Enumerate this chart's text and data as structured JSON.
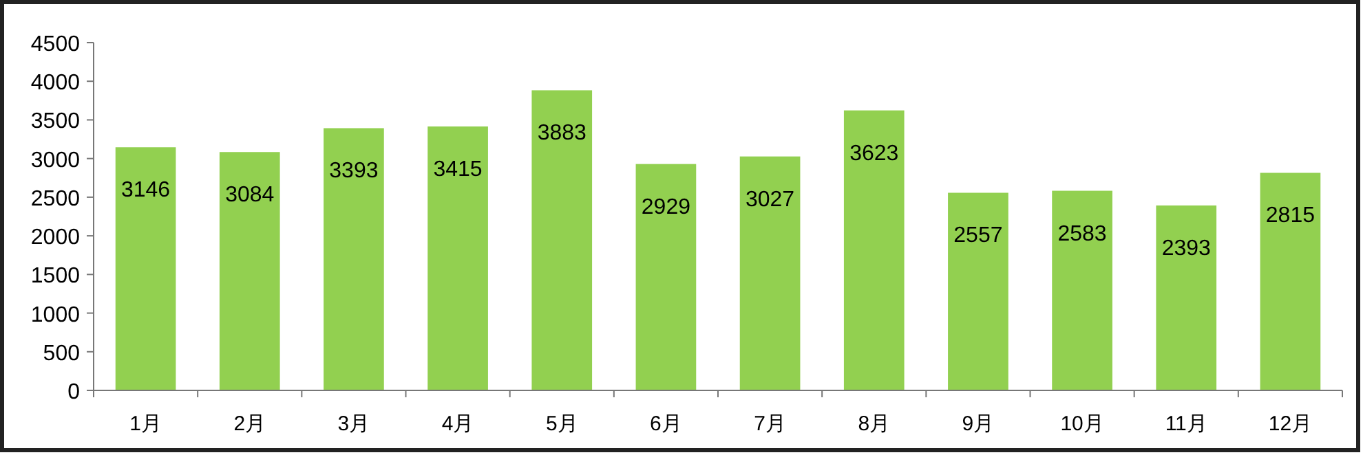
{
  "chart_data": {
    "type": "bar",
    "categories": [
      "1月",
      "2月",
      "3月",
      "4月",
      "5月",
      "6月",
      "7月",
      "8月",
      "9月",
      "10月",
      "11月",
      "12月"
    ],
    "values": [
      3146,
      3084,
      3393,
      3415,
      3883,
      2929,
      3027,
      3623,
      2557,
      2583,
      2393,
      2815
    ],
    "color": "#92d050",
    "ylim": [
      0,
      4500
    ],
    "yticks": [
      0,
      500,
      1000,
      1500,
      2000,
      2500,
      3000,
      3500,
      4000,
      4500
    ],
    "data_labels": true,
    "grid": false
  }
}
